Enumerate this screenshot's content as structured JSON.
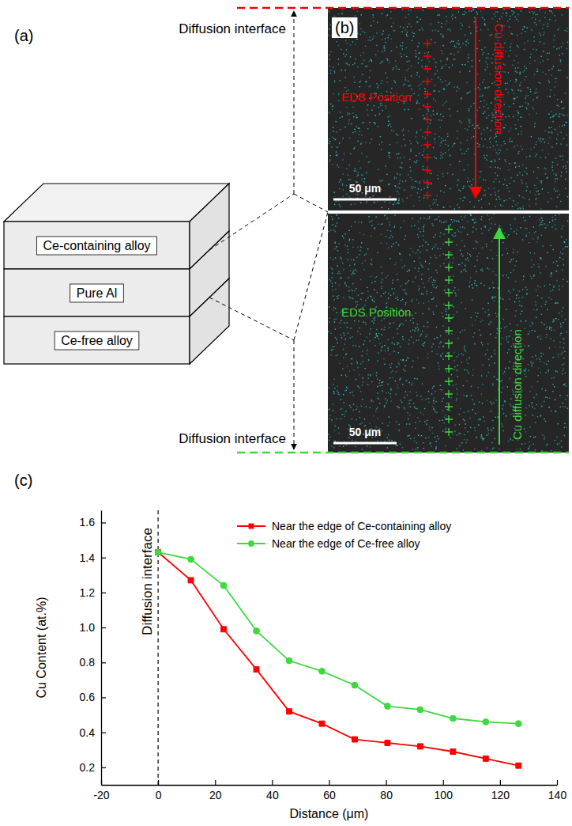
{
  "figure": {
    "panel_labels": [
      "(a)",
      "(b)"
    ],
    "diagram": {
      "layers": [
        "Ce-containing alloy",
        "Pure Al",
        "Ce-free alloy"
      ],
      "interface_labels": [
        "Diffusion interface",
        "Diffusion interface"
      ]
    },
    "eds_maps": [
      {
        "label": "EDS Position",
        "arrow_label": "Cu diffusion direction",
        "scale_bar": "50 μm",
        "color": "#ff0000",
        "direction": "down"
      },
      {
        "label": "EDS Position",
        "arrow_label": "Cu diffusion direction",
        "scale_bar": "50 μm",
        "color": "#3fd83f",
        "direction": "up"
      }
    ]
  },
  "chart_data": {
    "type": "line",
    "panel_label": "(c)",
    "xlabel": "Distance (μm)",
    "ylabel": "Cu Content (at.%)",
    "x": [
      0,
      11.5,
      23,
      34.5,
      46,
      57.5,
      69,
      80.5,
      92,
      103.5,
      115,
      126.5
    ],
    "xlim": [
      -20,
      140
    ],
    "xticks": [
      -20,
      0,
      20,
      40,
      60,
      80,
      100,
      120,
      140
    ],
    "ylim": [
      0.1,
      1.67
    ],
    "yticks": [
      0.2,
      0.4,
      0.6,
      0.8,
      {
        "value": 1,
        "label": "1.0"
      },
      1.2,
      1.4,
      1.6
    ],
    "series": [
      {
        "name": "Near the edge of Ce-containing alloy",
        "color": "#ff0000",
        "marker": "square",
        "values": [
          1.43,
          1.27,
          0.99,
          0.76,
          0.52,
          0.45,
          0.36,
          0.34,
          0.32,
          0.29,
          0.25,
          0.21
        ]
      },
      {
        "name": "Near the edge of Ce-free alloy",
        "color": "#3fd83f",
        "marker": "circle",
        "values": [
          1.43,
          1.39,
          1.24,
          0.98,
          0.81,
          0.75,
          0.67,
          0.55,
          0.53,
          0.48,
          0.46,
          0.45
        ]
      }
    ],
    "legend": "top-right",
    "annotations": [
      {
        "text": "Diffusion interface",
        "x": 0
      }
    ]
  }
}
